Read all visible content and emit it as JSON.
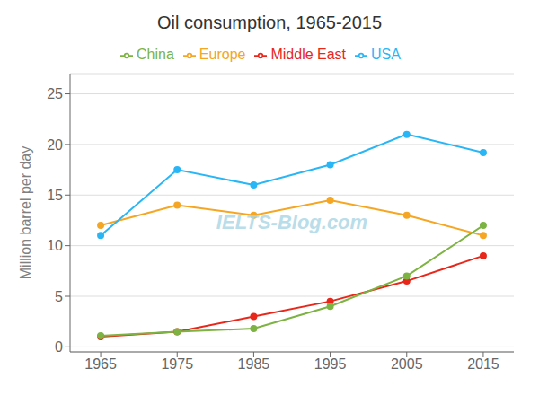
{
  "chart_data": {
    "type": "line",
    "title": "Oil consumption, 1965-2015",
    "y_label": "Million barrel per day",
    "annotations": [
      "IELTS-Blog.com"
    ],
    "x": [
      1965,
      1975,
      1985,
      1995,
      2005,
      2015
    ],
    "series": [
      {
        "name": "Europe",
        "color": "#F5A623",
        "marker": "circle",
        "values": [
          12.0,
          14.0,
          13.0,
          14.5,
          13.0,
          11.0
        ]
      },
      {
        "name": "Middle East",
        "color": "#E8271A",
        "marker": "circle",
        "values": [
          1.0,
          1.5,
          3.0,
          4.5,
          6.5,
          9.0
        ]
      },
      {
        "name": "China",
        "color": "#7CB342",
        "marker": "circle",
        "values": [
          1.1,
          1.5,
          1.8,
          4.0,
          7.0,
          12.0
        ]
      },
      {
        "name": "USA",
        "color": "#29B6F6",
        "marker": "circle",
        "values": [
          11.0,
          17.5,
          16.0,
          18.0,
          21.0,
          19.2
        ]
      }
    ],
    "xlim": [
      1961,
      2019
    ],
    "ylim": [
      -0.5,
      27
    ],
    "xticks": [
      1965,
      1975,
      1985,
      1995,
      2005,
      2015
    ],
    "yticks": [
      0,
      5,
      10,
      15,
      20,
      25
    ],
    "grid": "y",
    "legend": "top"
  }
}
